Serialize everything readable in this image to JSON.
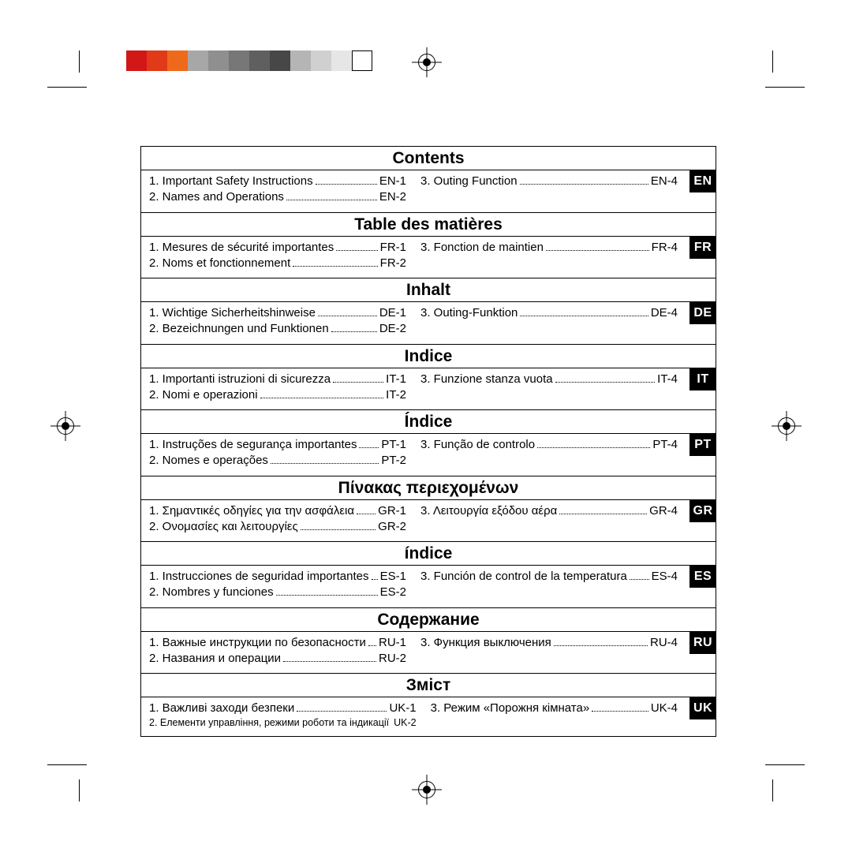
{
  "colorBar": [
    "#d31717",
    "#e03a18",
    "#ee6a1a",
    "#a7a7a7",
    "#8f8f8f",
    "#777777",
    "#5f5f5f",
    "#474747",
    "#b5b5b5",
    "#d0d0d0",
    "#e6e6e6",
    "#ffffff"
  ],
  "sections": [
    {
      "lang": "EN",
      "title": "Contents",
      "left": [
        {
          "label": "1. Important Safety Instructions",
          "page": "EN-1"
        },
        {
          "label": "2. Names and Operations",
          "page": "EN-2"
        }
      ],
      "right": [
        {
          "label": "3. Outing Function",
          "page": "EN-4"
        }
      ]
    },
    {
      "lang": "FR",
      "title": "Table des matières",
      "left": [
        {
          "label": "1. Mesures de sécurité importantes",
          "page": "FR-1"
        },
        {
          "label": "2. Noms et fonctionnement",
          "page": "FR-2"
        }
      ],
      "right": [
        {
          "label": "3. Fonction de maintien",
          "page": "FR-4"
        }
      ]
    },
    {
      "lang": "DE",
      "title": "Inhalt",
      "left": [
        {
          "label": "1. Wichtige Sicherheitshinweise",
          "page": "DE-1"
        },
        {
          "label": "2. Bezeichnungen und Funktionen",
          "page": "DE-2"
        }
      ],
      "right": [
        {
          "label": "3. Outing-Funktion",
          "page": "DE-4"
        }
      ]
    },
    {
      "lang": "IT",
      "title": "Indice",
      "left": [
        {
          "label": "1. Importanti istruzioni di sicurezza",
          "page": "IT-1"
        },
        {
          "label": "2. Nomi e operazioni",
          "page": "IT-2"
        }
      ],
      "right": [
        {
          "label": "3. Funzione stanza vuota",
          "page": "IT-4"
        }
      ]
    },
    {
      "lang": "PT",
      "title": "Índice",
      "left": [
        {
          "label": "1. Instruções de segurança importantes",
          "page": "PT-1"
        },
        {
          "label": "2. Nomes e operações",
          "page": "PT-2"
        }
      ],
      "right": [
        {
          "label": "3. Função de controlo",
          "page": "PT-4"
        }
      ]
    },
    {
      "lang": "GR",
      "title": "Πίνακας περιεχομένων",
      "left": [
        {
          "label": "1. Σημαντικές οδηγίες για την ασφάλεια",
          "page": "GR-1"
        },
        {
          "label": "2. Ονομασίες και λειτουργίες",
          "page": "GR-2"
        }
      ],
      "right": [
        {
          "label": "3. Λειτουργία εξόδου αέρα",
          "page": "GR-4"
        }
      ]
    },
    {
      "lang": "ES",
      "title": "índice",
      "left": [
        {
          "label": "1. Instrucciones de seguridad importantes",
          "page": "ES-1"
        },
        {
          "label": "2. Nombres y funciones",
          "page": "ES-2"
        }
      ],
      "right": [
        {
          "label": "3. Función de control de la temperatura",
          "page": "ES-4"
        }
      ]
    },
    {
      "lang": "RU",
      "title": "Содержание",
      "left": [
        {
          "label": "1. Важные инструкции по безопасности",
          "page": "RU-1"
        },
        {
          "label": "2. Названия и операции",
          "page": "RU-2"
        }
      ],
      "right": [
        {
          "label": "3. Функция выключения",
          "page": "RU-4"
        }
      ]
    },
    {
      "lang": "UK",
      "title": "Зміст",
      "left": [
        {
          "label": "1. Важливі заходи безпеки",
          "page": "UK-1"
        },
        {
          "label": "2. Елементи управління, режими роботи та індикації",
          "page": "UK-2",
          "small": true
        }
      ],
      "right": [
        {
          "label": "3. Режим «Порожня кімната»",
          "page": "UK-4"
        }
      ]
    }
  ]
}
